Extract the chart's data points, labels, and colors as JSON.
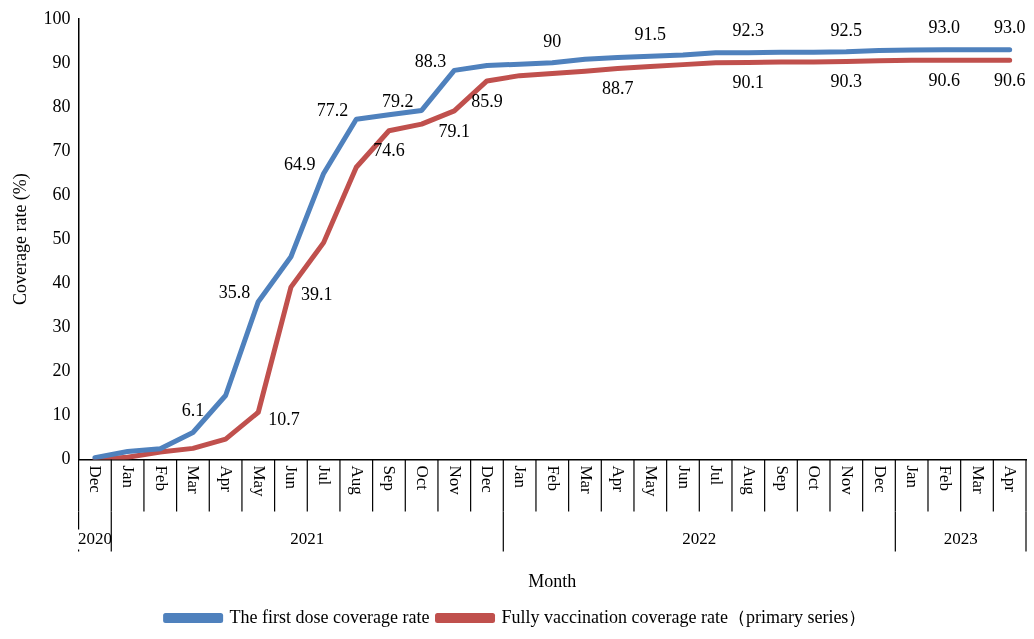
{
  "chart_data": {
    "type": "line",
    "xlabel": "Month",
    "ylabel": "Coverage rate (%)",
    "categories": [
      "Dec",
      "Jan",
      "Feb",
      "Mar",
      "Apr",
      "May",
      "Jun",
      "Jul",
      "Aug",
      "Sep",
      "Oct",
      "Nov",
      "Dec",
      "Jan",
      "Feb",
      "Mar",
      "Apr",
      "May",
      "Jun",
      "Jul",
      "Aug",
      "Sep",
      "Oct",
      "Nov",
      "Dec",
      "Jan",
      "Feb",
      "Mar",
      "Apr"
    ],
    "annotations": [
      "2020",
      "2021",
      "2022",
      "2023"
    ],
    "series": [
      {
        "name": "The first dose coverage rate",
        "color": "#4f81bd",
        "values": [
          0.4,
          1.8,
          2.4,
          6.1,
          14.5,
          35.8,
          46,
          64.9,
          77.2,
          78.2,
          79.2,
          88.3,
          89.4,
          89.7,
          90,
          90.8,
          91.2,
          91.5,
          91.8,
          92.3,
          92.3,
          92.4,
          92.4,
          92.5,
          92.8,
          92.9,
          93.0,
          93.0,
          93.0
        ],
        "value_labels": [
          null,
          null,
          null,
          "6.1",
          null,
          "35.8",
          null,
          "64.9",
          "77.2",
          null,
          "79.2",
          "88.3",
          null,
          null,
          "90",
          null,
          null,
          "91.5",
          null,
          null,
          "92.3",
          null,
          null,
          "92.5",
          null,
          null,
          "93.0",
          null,
          "93.0"
        ]
      },
      {
        "name": "Fully vaccination coverage rate（primary series）",
        "color": "#c0504d",
        "values": [
          0,
          0.5,
          1.7,
          2.5,
          4.6,
          10.7,
          39.1,
          49.2,
          66.3,
          74.6,
          76.1,
          79.1,
          85.9,
          87.1,
          87.6,
          88.1,
          88.7,
          89.2,
          89.6,
          90.0,
          90.1,
          90.2,
          90.2,
          90.3,
          90.5,
          90.6,
          90.6,
          90.6,
          90.6
        ],
        "value_labels": [
          null,
          null,
          null,
          null,
          null,
          "10.7",
          "39.1",
          null,
          null,
          "74.6",
          null,
          "79.1",
          "85.9",
          null,
          null,
          null,
          "88.7",
          null,
          null,
          null,
          "90.1",
          null,
          null,
          "90.3",
          null,
          null,
          "90.6",
          null,
          "90.6"
        ]
      }
    ],
    "ylim": [
      0,
      100
    ],
    "yticks": [
      0,
      10,
      20,
      30,
      40,
      50,
      60,
      70,
      80,
      90,
      100
    ],
    "grid": false,
    "legend": "bottom",
    "marker": "none",
    "line_style": "solid"
  }
}
